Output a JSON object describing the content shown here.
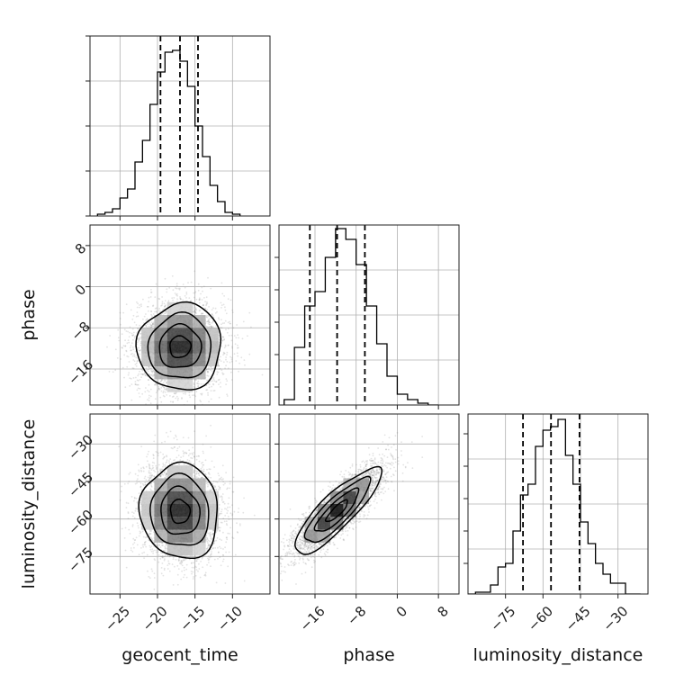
{
  "chart_data": {
    "type": "corner",
    "parameters": [
      {
        "name": "geocent_time",
        "xlim": [
          -29,
          -5
        ],
        "ticks": [
          -25,
          -20,
          -15,
          -10
        ],
        "tick_labels": [
          "−25",
          "−20",
          "−15",
          "−10"
        ],
        "quantiles": [
          -19.6,
          -17.0,
          -14.6
        ],
        "hist_edges": [
          -28,
          -27,
          -26,
          -25,
          -24,
          -23,
          -22,
          -21,
          -20,
          -19,
          -18,
          -17,
          -16,
          -15,
          -14,
          -13,
          -12,
          -11,
          -10,
          -9
        ],
        "hist_counts": [
          0.01,
          0.02,
          0.04,
          0.1,
          0.15,
          0.3,
          0.42,
          0.62,
          0.8,
          0.91,
          0.92,
          0.86,
          0.72,
          0.5,
          0.33,
          0.17,
          0.08,
          0.02,
          0.01
        ]
      },
      {
        "name": "phase",
        "xlim": [
          -23,
          12
        ],
        "ticks": [
          -16,
          -8,
          0,
          8
        ],
        "tick_labels": [
          "−16",
          "−8",
          "0",
          "8"
        ],
        "quantiles": [
          -17.0,
          -11.7,
          -6.3
        ],
        "hist_edges": [
          -22,
          -20,
          -18,
          -16,
          -14,
          -12,
          -10,
          -8,
          -6,
          -4,
          -2,
          0,
          2,
          4,
          6,
          8
        ],
        "hist_counts": [
          0.03,
          0.32,
          0.55,
          0.63,
          0.82,
          0.98,
          0.92,
          0.78,
          0.55,
          0.34,
          0.16,
          0.06,
          0.03,
          0.01,
          0.0
        ]
      },
      {
        "name": "luminosity_distance",
        "xlim": [
          -90,
          -18
        ],
        "ticks": [
          -75,
          -60,
          -45,
          -30
        ],
        "tick_labels": [
          "−75",
          "−60",
          "−45",
          "−30"
        ],
        "quantiles": [
          -68.0,
          -56.8,
          -45.4
        ],
        "hist_edges": [
          -90,
          -87,
          -84,
          -81,
          -78,
          -75,
          -72,
          -69,
          -66,
          -63,
          -60,
          -57,
          -54,
          -51,
          -48,
          -45,
          -42,
          -39,
          -36,
          -33,
          -30,
          -27,
          -24,
          -21
        ],
        "hist_counts": [
          0.0,
          0.01,
          0.01,
          0.05,
          0.15,
          0.17,
          0.35,
          0.55,
          0.61,
          0.82,
          0.91,
          0.93,
          0.97,
          0.77,
          0.61,
          0.4,
          0.28,
          0.17,
          0.11,
          0.06,
          0.06,
          0.0,
          0.0
        ]
      }
    ],
    "ylims": {
      "phase": [
        -23,
        12
      ],
      "luminosity_distance": [
        -90,
        -18
      ]
    },
    "ytick_sets": {
      "phase": {
        "ticks": [
          -16,
          -8,
          0,
          8
        ],
        "labels": [
          "−16",
          "−8",
          "0",
          "8"
        ]
      },
      "luminosity_distance": {
        "ticks": [
          -75,
          -60,
          -45,
          -30
        ],
        "labels": [
          "−75",
          "−60",
          "−45",
          "−30"
        ]
      }
    },
    "pairs": [
      {
        "x": "geocent_time",
        "y": "phase",
        "mean": [
          -17.0,
          -11.7
        ],
        "sd": [
          2.8,
          4.2
        ],
        "corr": 0.03
      },
      {
        "x": "geocent_time",
        "y": "luminosity_distance",
        "mean": [
          -17.0,
          -57.0
        ],
        "sd": [
          2.6,
          9.5
        ],
        "corr": -0.05
      },
      {
        "x": "phase",
        "y": "luminosity_distance",
        "mean": [
          -11.7,
          -56.8
        ],
        "sd": [
          4.2,
          8.6
        ],
        "corr": 0.85
      }
    ],
    "contour_levels_sigma": [
      0.5,
      1.0,
      1.5,
      2.0
    ],
    "grid": true,
    "colors": {
      "line": "#000000",
      "grid": "#b0b0b0",
      "scatter": "#808080"
    }
  }
}
